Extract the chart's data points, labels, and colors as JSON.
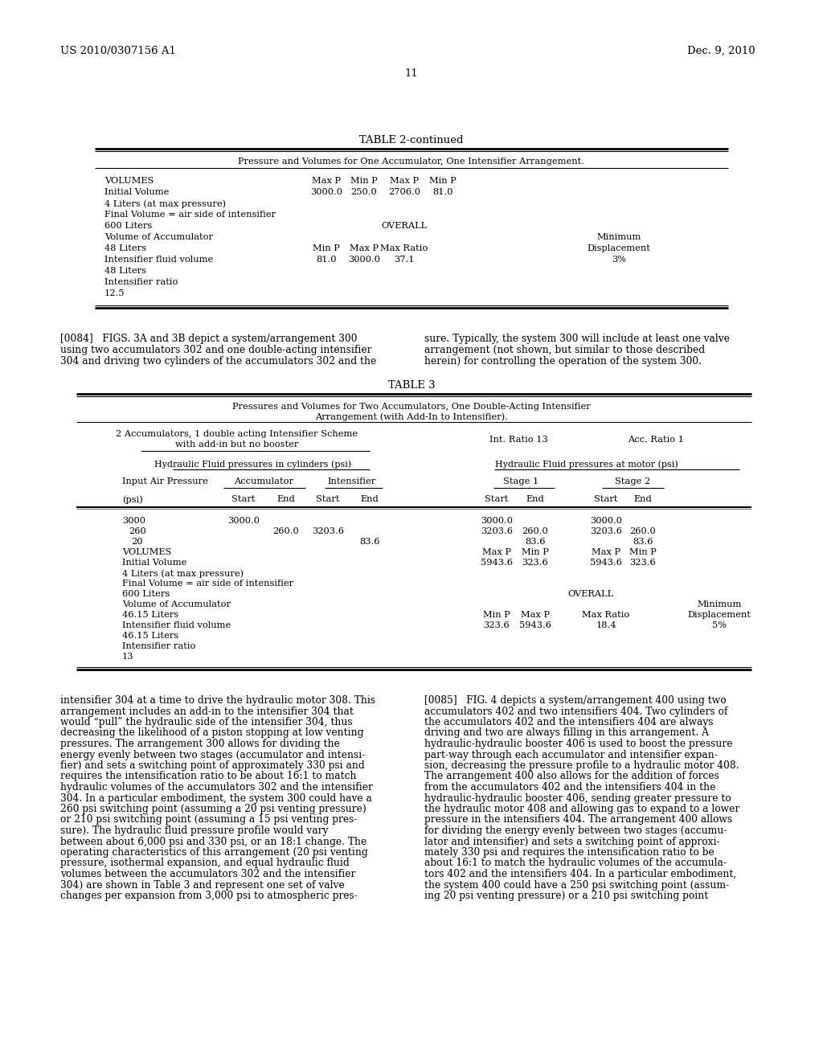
{
  "patent_number": "US 2010/0307156 A1",
  "date": "Dec. 9, 2010",
  "page_number": "11"
}
